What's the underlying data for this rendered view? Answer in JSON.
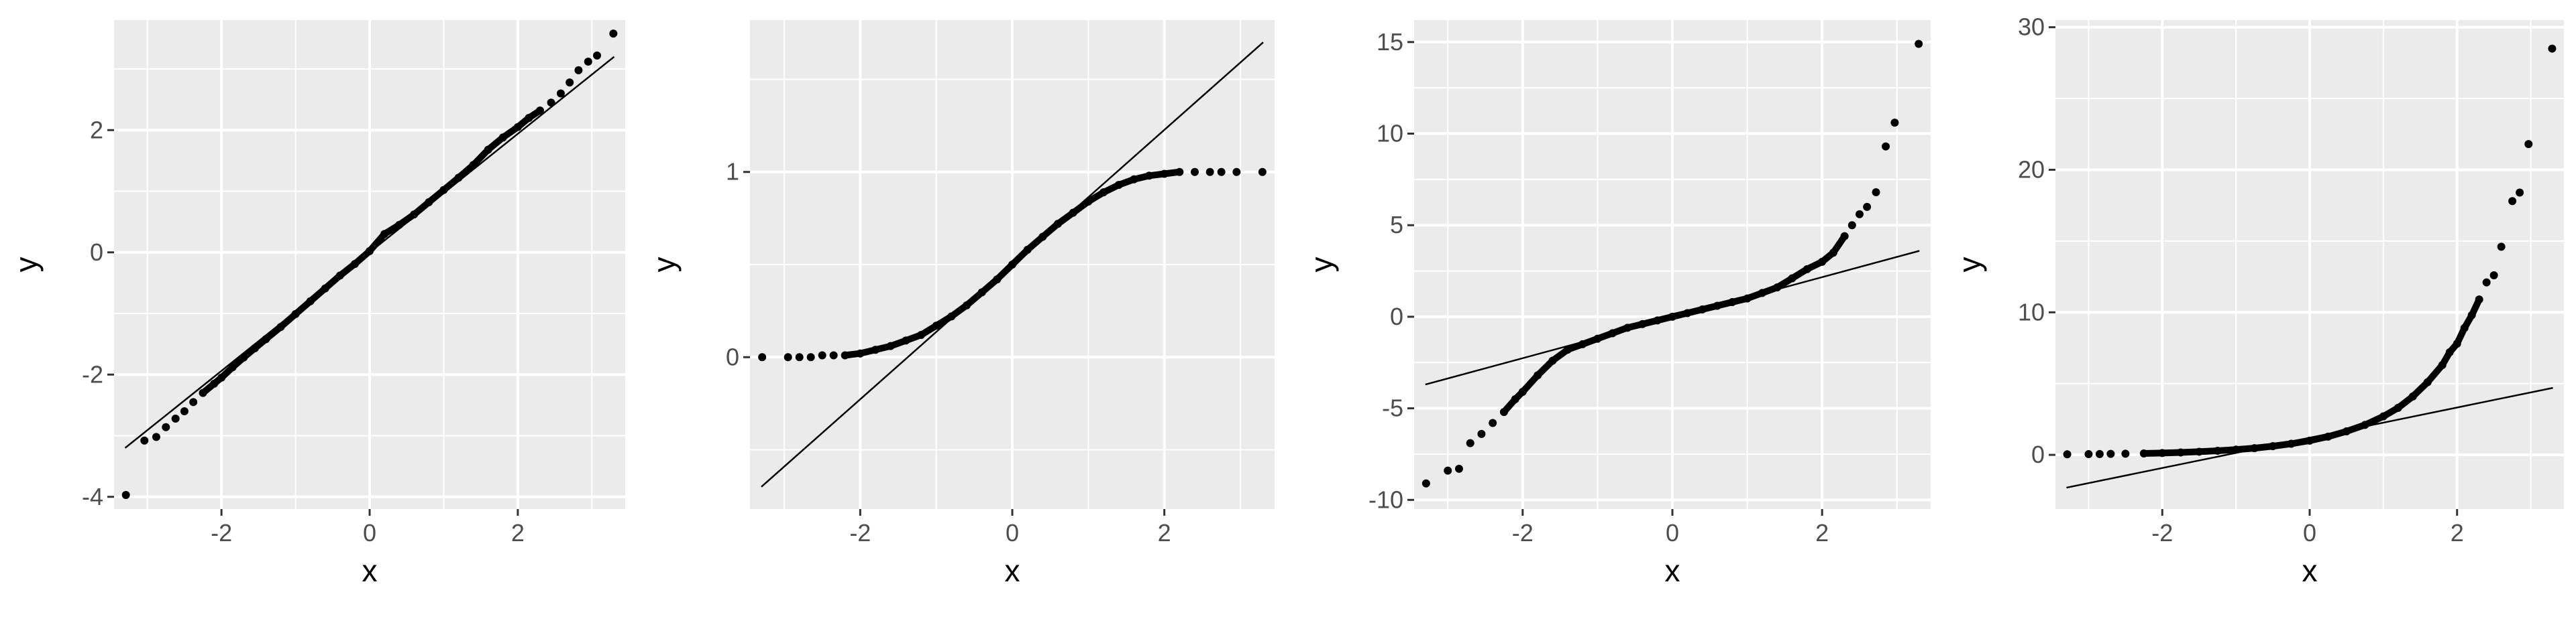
{
  "chart_data": [
    {
      "type": "scatter",
      "subtype": "qq-plot",
      "xlabel": "x",
      "ylabel": "y",
      "xlim": [
        -3.45,
        3.45
      ],
      "ylim": [
        -4.2,
        3.8
      ],
      "x_ticks": [
        -2,
        0,
        2
      ],
      "x_tick_labels": [
        "-2",
        "0",
        "2"
      ],
      "y_ticks": [
        -4,
        -2,
        0,
        2
      ],
      "y_tick_labels": [
        "-4",
        "-2",
        "0",
        "2"
      ],
      "grid": true,
      "reference_line": {
        "x": [
          -3.3,
          3.3
        ],
        "y": [
          -3.2,
          3.2
        ]
      },
      "points": [
        [
          -3.29,
          -3.97
        ],
        [
          -3.04,
          -3.08
        ],
        [
          -2.88,
          -3.02
        ],
        [
          -2.75,
          -2.86
        ],
        [
          -2.62,
          -2.72
        ],
        [
          -2.5,
          -2.6
        ],
        [
          -2.38,
          -2.45
        ],
        [
          -2.25,
          -2.3
        ],
        [
          -2.1,
          -2.15
        ],
        [
          -2.0,
          -2.05
        ],
        [
          -1.85,
          -1.88
        ],
        [
          -1.7,
          -1.72
        ],
        [
          -1.55,
          -1.57
        ],
        [
          -1.4,
          -1.42
        ],
        [
          -1.2,
          -1.22
        ],
        [
          -1.0,
          -1.01
        ],
        [
          -0.8,
          -0.8
        ],
        [
          -0.6,
          -0.59
        ],
        [
          -0.4,
          -0.38
        ],
        [
          -0.2,
          -0.19
        ],
        [
          0.0,
          0.02
        ],
        [
          0.2,
          0.3
        ],
        [
          0.4,
          0.45
        ],
        [
          0.6,
          0.62
        ],
        [
          0.8,
          0.82
        ],
        [
          1.0,
          1.02
        ],
        [
          1.2,
          1.22
        ],
        [
          1.4,
          1.43
        ],
        [
          1.6,
          1.68
        ],
        [
          1.8,
          1.88
        ],
        [
          2.0,
          2.05
        ],
        [
          2.15,
          2.2
        ],
        [
          2.3,
          2.32
        ],
        [
          2.45,
          2.45
        ],
        [
          2.58,
          2.6
        ],
        [
          2.7,
          2.78
        ],
        [
          2.82,
          2.98
        ],
        [
          2.95,
          3.12
        ],
        [
          3.07,
          3.22
        ],
        [
          3.29,
          3.58
        ]
      ]
    },
    {
      "type": "scatter",
      "subtype": "qq-plot",
      "xlabel": "x",
      "ylabel": "y",
      "xlim": [
        -3.45,
        3.45
      ],
      "ylim": [
        -0.82,
        1.82
      ],
      "x_ticks": [
        -2,
        0,
        2
      ],
      "x_tick_labels": [
        "-2",
        "0",
        "2"
      ],
      "y_ticks": [
        0,
        1
      ],
      "y_tick_labels": [
        "0",
        "1"
      ],
      "grid": true,
      "reference_line": {
        "x": [
          -3.3,
          3.3
        ],
        "y": [
          -0.7,
          1.7
        ]
      },
      "points": [
        [
          -3.29,
          0.0
        ],
        [
          -2.95,
          0.0
        ],
        [
          -2.8,
          0.0
        ],
        [
          -2.65,
          0.0
        ],
        [
          -2.5,
          0.01
        ],
        [
          -2.35,
          0.01
        ],
        [
          -2.2,
          0.01
        ],
        [
          -2.0,
          0.02
        ],
        [
          -1.8,
          0.04
        ],
        [
          -1.6,
          0.06
        ],
        [
          -1.4,
          0.09
        ],
        [
          -1.2,
          0.12
        ],
        [
          -1.0,
          0.17
        ],
        [
          -0.8,
          0.22
        ],
        [
          -0.6,
          0.28
        ],
        [
          -0.4,
          0.35
        ],
        [
          -0.2,
          0.42
        ],
        [
          0.0,
          0.5
        ],
        [
          0.2,
          0.58
        ],
        [
          0.4,
          0.65
        ],
        [
          0.6,
          0.72
        ],
        [
          0.8,
          0.78
        ],
        [
          1.0,
          0.84
        ],
        [
          1.2,
          0.89
        ],
        [
          1.4,
          0.93
        ],
        [
          1.6,
          0.96
        ],
        [
          1.8,
          0.98
        ],
        [
          2.0,
          0.99
        ],
        [
          2.2,
          1.0
        ],
        [
          2.4,
          1.0
        ],
        [
          2.6,
          1.0
        ],
        [
          2.75,
          1.0
        ],
        [
          2.95,
          1.0
        ],
        [
          3.29,
          1.0
        ]
      ]
    },
    {
      "type": "scatter",
      "subtype": "qq-plot",
      "xlabel": "x",
      "ylabel": "y",
      "xlim": [
        -3.45,
        3.45
      ],
      "ylim": [
        -10.5,
        16.2
      ],
      "x_ticks": [
        -2,
        0,
        2
      ],
      "x_tick_labels": [
        "-2",
        "0",
        "2"
      ],
      "y_ticks": [
        -10,
        -5,
        0,
        5,
        10,
        15
      ],
      "y_tick_labels": [
        "-10",
        "-5",
        "0",
        "5",
        "10",
        "15"
      ],
      "grid": true,
      "reference_line": {
        "x": [
          -3.3,
          3.3
        ],
        "y": [
          -3.7,
          3.6
        ]
      },
      "points": [
        [
          -3.29,
          -9.1
        ],
        [
          -3.0,
          -8.4
        ],
        [
          -2.85,
          -8.3
        ],
        [
          -2.7,
          -6.9
        ],
        [
          -2.55,
          -6.4
        ],
        [
          -2.4,
          -5.8
        ],
        [
          -2.25,
          -5.2
        ],
        [
          -2.1,
          -4.5
        ],
        [
          -2.0,
          -4.1
        ],
        [
          -1.8,
          -3.2
        ],
        [
          -1.6,
          -2.4
        ],
        [
          -1.4,
          -1.8
        ],
        [
          -1.2,
          -1.5
        ],
        [
          -1.0,
          -1.2
        ],
        [
          -0.8,
          -0.9
        ],
        [
          -0.6,
          -0.6
        ],
        [
          -0.4,
          -0.4
        ],
        [
          -0.2,
          -0.2
        ],
        [
          0.0,
          0.0
        ],
        [
          0.2,
          0.2
        ],
        [
          0.4,
          0.4
        ],
        [
          0.6,
          0.6
        ],
        [
          0.8,
          0.8
        ],
        [
          1.0,
          1.0
        ],
        [
          1.2,
          1.3
        ],
        [
          1.4,
          1.6
        ],
        [
          1.6,
          2.1
        ],
        [
          1.8,
          2.6
        ],
        [
          2.0,
          3.0
        ],
        [
          2.15,
          3.5
        ],
        [
          2.3,
          4.4
        ],
        [
          2.4,
          5.0
        ],
        [
          2.5,
          5.6
        ],
        [
          2.6,
          6.0
        ],
        [
          2.72,
          6.8
        ],
        [
          2.85,
          9.3
        ],
        [
          2.97,
          10.6
        ],
        [
          3.29,
          14.9
        ]
      ]
    },
    {
      "type": "scatter",
      "subtype": "qq-plot",
      "xlabel": "x",
      "ylabel": "y",
      "xlim": [
        -3.45,
        3.45
      ],
      "ylim": [
        -3.8,
        30.5
      ],
      "x_ticks": [
        -2,
        0,
        2
      ],
      "x_tick_labels": [
        "-2",
        "0",
        "2"
      ],
      "y_ticks": [
        0,
        10,
        20,
        30
      ],
      "y_tick_labels": [
        "0",
        "10",
        "20",
        "30"
      ],
      "grid": true,
      "reference_line": {
        "x": [
          -3.3,
          3.3
        ],
        "y": [
          -2.3,
          4.7
        ]
      },
      "points": [
        [
          -3.29,
          0.04
        ],
        [
          -3.0,
          0.05
        ],
        [
          -2.85,
          0.06
        ],
        [
          -2.7,
          0.07
        ],
        [
          -2.5,
          0.08
        ],
        [
          -2.25,
          0.1
        ],
        [
          -2.0,
          0.13
        ],
        [
          -1.75,
          0.17
        ],
        [
          -1.5,
          0.22
        ],
        [
          -1.25,
          0.29
        ],
        [
          -1.0,
          0.37
        ],
        [
          -0.75,
          0.47
        ],
        [
          -0.5,
          0.61
        ],
        [
          -0.25,
          0.78
        ],
        [
          0.0,
          1.0
        ],
        [
          0.25,
          1.28
        ],
        [
          0.5,
          1.65
        ],
        [
          0.75,
          2.1
        ],
        [
          1.0,
          2.7
        ],
        [
          1.2,
          3.3
        ],
        [
          1.4,
          4.1
        ],
        [
          1.6,
          5.1
        ],
        [
          1.8,
          6.3
        ],
        [
          1.9,
          7.2
        ],
        [
          2.0,
          7.8
        ],
        [
          2.1,
          8.9
        ],
        [
          2.2,
          9.8
        ],
        [
          2.3,
          10.9
        ],
        [
          2.4,
          12.1
        ],
        [
          2.5,
          12.6
        ],
        [
          2.6,
          14.6
        ],
        [
          2.75,
          17.8
        ],
        [
          2.85,
          18.4
        ],
        [
          2.97,
          21.8
        ],
        [
          3.29,
          28.5
        ]
      ]
    }
  ]
}
